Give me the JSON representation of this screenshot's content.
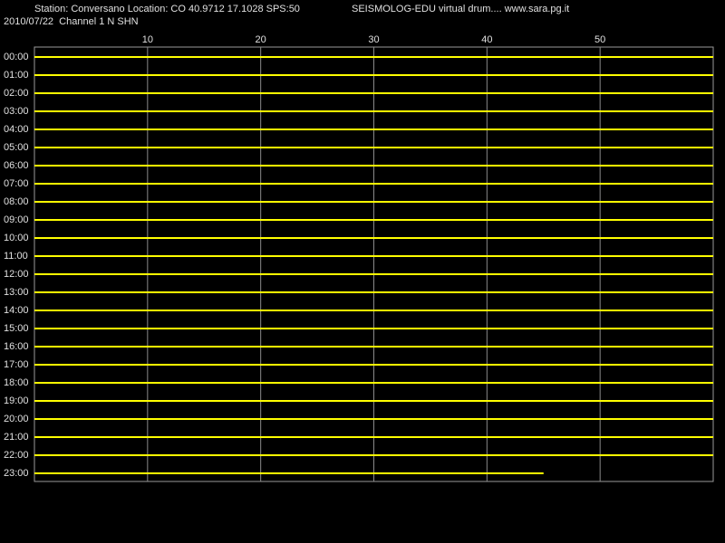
{
  "chart_data": {
    "type": "helicorder",
    "title": "Station: Conversano Location: CO 40.9712 17.1028 SPS:50",
    "subtitle": "2010/07/22  Channel 1 N SHN",
    "header_right": "SEISMOLOG-EDU virtual drum.... www.sara.pg.it",
    "xlim": [
      0,
      60
    ],
    "xticks": [
      10,
      20,
      30,
      40,
      50
    ],
    "grid": true,
    "color": "#ffff00",
    "categories": [
      "00:00",
      "01:00",
      "02:00",
      "03:00",
      "04:00",
      "05:00",
      "06:00",
      "07:00",
      "08:00",
      "09:00",
      "10:00",
      "11:00",
      "12:00",
      "13:00",
      "14:00",
      "15:00",
      "16:00",
      "17:00",
      "18:00",
      "19:00",
      "20:00",
      "21:00",
      "22:00",
      "23:00"
    ],
    "values": [
      60,
      60,
      60,
      60,
      60,
      60,
      60,
      60,
      60,
      60,
      60,
      60,
      60,
      60,
      60,
      60,
      60,
      60,
      60,
      60,
      60,
      60,
      60,
      45
    ]
  }
}
